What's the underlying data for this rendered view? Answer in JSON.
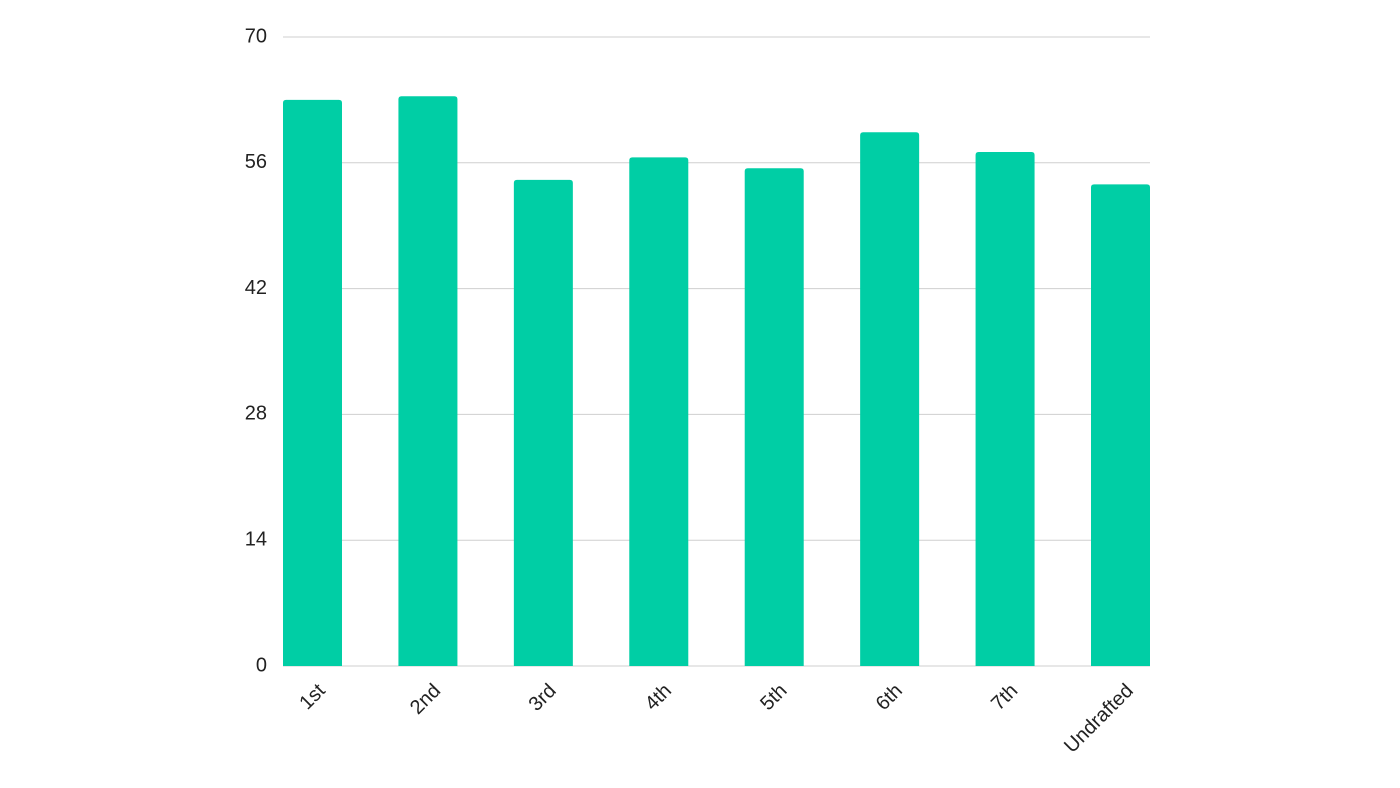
{
  "chart_data": {
    "type": "bar",
    "categories": [
      "1st",
      "2nd",
      "3rd",
      "4th",
      "5th",
      "6th",
      "7th",
      "Undrafted"
    ],
    "values": [
      63.0,
      63.4,
      54.1,
      56.6,
      55.4,
      59.4,
      57.2,
      53.6
    ],
    "color": "#00cea5",
    "ylim": [
      0,
      70
    ],
    "yticks": [
      0,
      14,
      28,
      42,
      56,
      70
    ],
    "grid": true
  }
}
